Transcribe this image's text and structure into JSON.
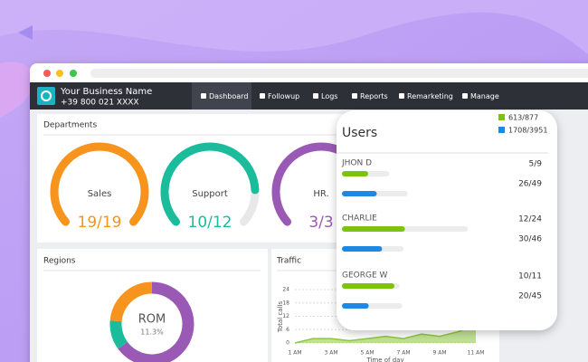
{
  "business": {
    "name": "Your Business Name",
    "phone": "+39 800 021 XXXX"
  },
  "nav": [
    "Dashboard",
    "Followup",
    "Logs",
    "Reports",
    "Remarketing",
    "Manage"
  ],
  "departments": {
    "title": "Departments",
    "gauges": [
      {
        "label": "Sales",
        "value": 19,
        "max": 19,
        "value_label": "19/19",
        "color": "#f7941d"
      },
      {
        "label": "Support",
        "value": 10,
        "max": 12,
        "value_label": "10/12",
        "color": "#1abc9c"
      },
      {
        "label": "HR.",
        "value": 3,
        "max": 3,
        "value_label": "3/3",
        "color": "#9b59b6"
      }
    ]
  },
  "regions": {
    "title": "Regions",
    "center_label": "ROM",
    "center_value": "11.3%",
    "segments": [
      {
        "value": 65,
        "color": "#9b59b6"
      },
      {
        "value": 11.3,
        "color": "#1abc9c"
      },
      {
        "value": 23.7,
        "color": "#f7941d"
      }
    ]
  },
  "traffic": {
    "title": "Traffic",
    "type": "area",
    "y_label": "Total calls",
    "x_label": "Time of day",
    "categories": [
      "1 AM",
      null,
      "3 AM",
      null,
      "5 AM",
      null,
      "7 AM",
      null,
      "9 AM",
      null,
      "11 AM"
    ],
    "values": [
      0,
      2,
      2,
      1,
      2,
      3,
      2,
      4,
      3,
      5,
      8
    ],
    "color": "#8dc63f",
    "ylim": [
      0,
      24
    ],
    "yticks": [
      0,
      6,
      12,
      18,
      24
    ]
  },
  "users": {
    "title": "Users",
    "legend": [
      {
        "label": "613/877",
        "color": "#7cc30e"
      },
      {
        "label": "1708/3951",
        "color": "#1e88e5"
      }
    ],
    "rows": [
      {
        "name": "JHON D",
        "bars": [
          {
            "value": 5,
            "max": 9,
            "value_label": "5/9"
          },
          {
            "value": 26,
            "max": 49,
            "value_label": "26/49"
          }
        ]
      },
      {
        "name": "CHARLIE",
        "bars": [
          {
            "value": 12,
            "max": 24,
            "value_label": "12/24"
          },
          {
            "value": 30,
            "max": 46,
            "value_label": "30/46"
          }
        ]
      },
      {
        "name": "GEORGE W",
        "bars": [
          {
            "value": 10,
            "max": 11,
            "value_label": "10/11"
          },
          {
            "value": 20,
            "max": 45,
            "value_label": "20/45"
          }
        ]
      }
    ]
  }
}
